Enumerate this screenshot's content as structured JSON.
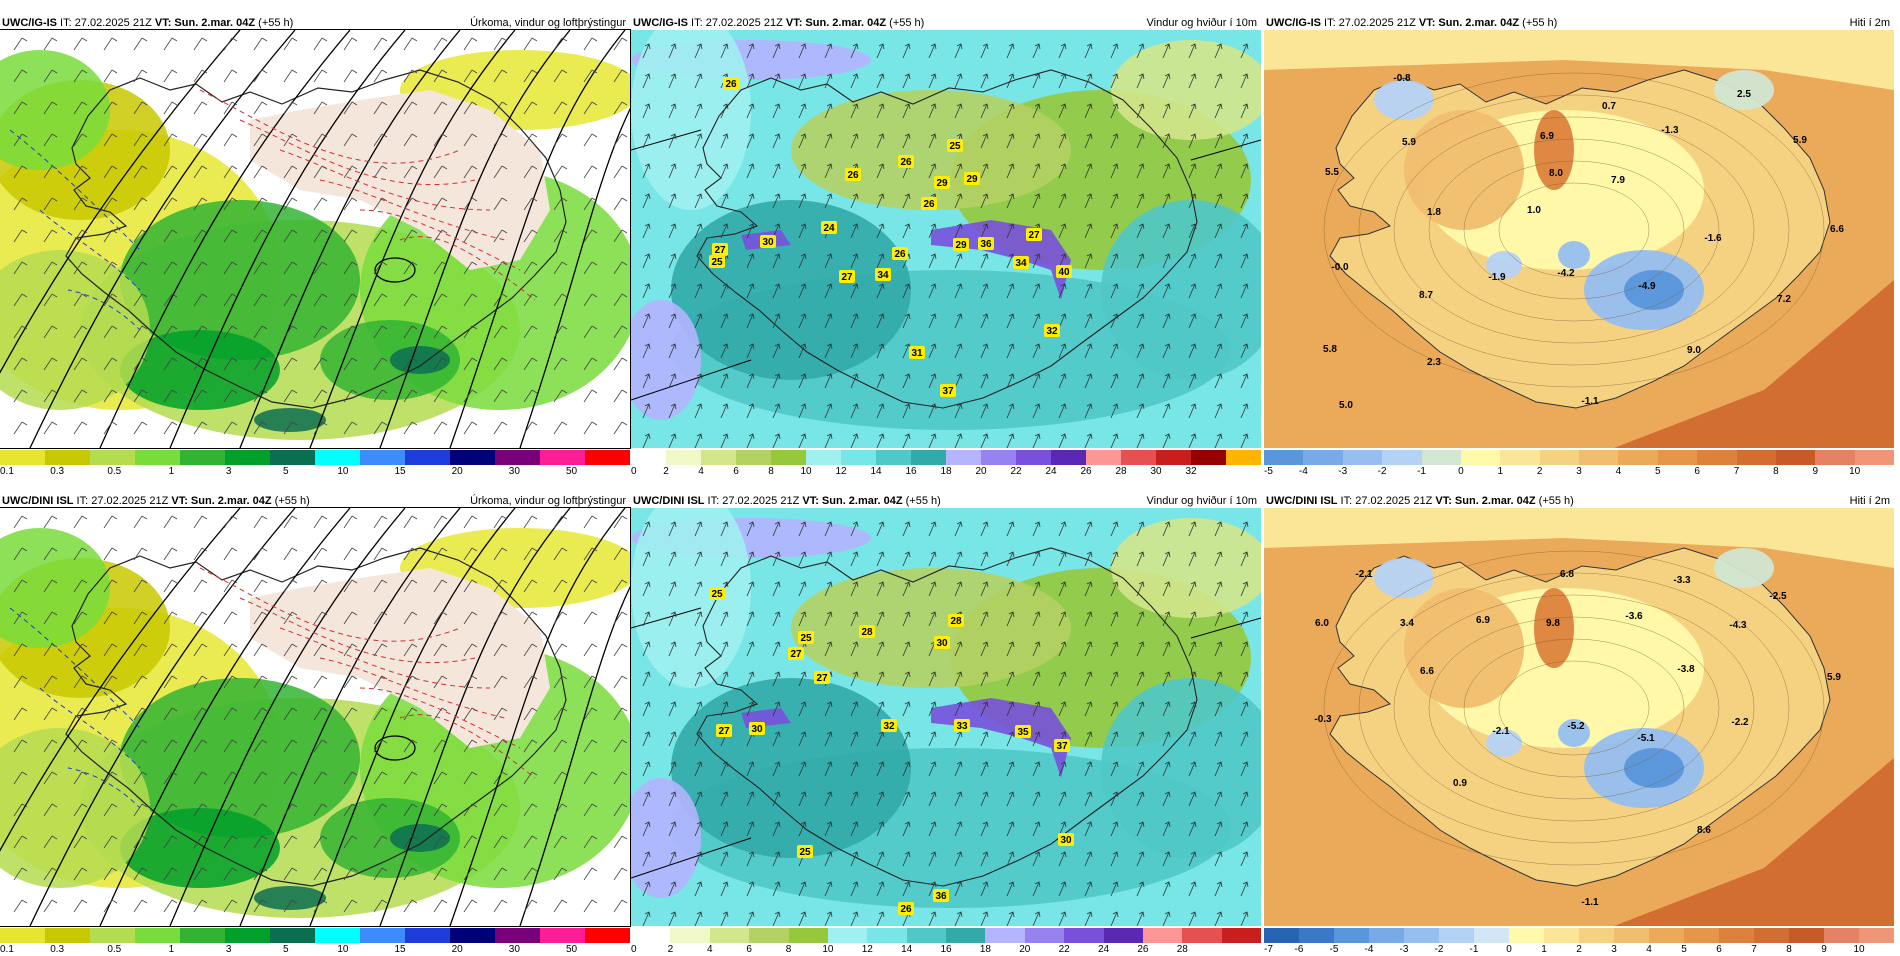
{
  "colorbars": {
    "precip": {
      "colors": [
        "#e6e632",
        "#c8c800",
        "#b4dc50",
        "#78dc3c",
        "#32b432",
        "#00a02a",
        "#0a6e50",
        "#00ffff",
        "#3c8cff",
        "#1e3cdc",
        "#00007a",
        "#780078",
        "#ff1e96",
        "#ff0000"
      ],
      "labels": [
        "0.1",
        "0.3",
        "0.5",
        "1",
        "3",
        "5",
        "10",
        "15",
        "20",
        "30",
        "50"
      ]
    },
    "wind_top": {
      "colors": [
        "#ffffff",
        "#f0f8c8",
        "#d2e68c",
        "#b4d264",
        "#96c83c",
        "#a0f0f0",
        "#78e6e6",
        "#50c8c8",
        "#32aaaa",
        "#b4b4ff",
        "#9682f0",
        "#7850dc",
        "#5a28b4",
        "#ff9696",
        "#e65050",
        "#c81e1e",
        "#960000",
        "#ffb400"
      ],
      "labels": [
        "0",
        "2",
        "4",
        "6",
        "8",
        "10",
        "12",
        "14",
        "16",
        "18",
        "20",
        "22",
        "24",
        "26",
        "28",
        "30",
        "32"
      ]
    },
    "wind_bottom": {
      "colors": [
        "#ffffff",
        "#f0f8c8",
        "#d2e68c",
        "#b4d264",
        "#96c83c",
        "#a0f0f0",
        "#78e6e6",
        "#50c8c8",
        "#32aaaa",
        "#b4b4ff",
        "#9682f0",
        "#7850dc",
        "#5a28b4",
        "#ff9696",
        "#e65050",
        "#c81e1e"
      ],
      "labels": [
        "0",
        "2",
        "4",
        "6",
        "8",
        "10",
        "12",
        "14",
        "16",
        "18",
        "20",
        "22",
        "24",
        "26",
        "28"
      ]
    },
    "temp_top": {
      "colors": [
        "#5a96dc",
        "#78aae6",
        "#96bef0",
        "#b4d2f5",
        "#d2e6d2",
        "#fffaaa",
        "#fae696",
        "#f5d282",
        "#f0be6e",
        "#ebaa5a",
        "#e6964b",
        "#dc823c",
        "#d26e32",
        "#c85a28",
        "#e68264",
        "#f09678"
      ],
      "labels": [
        "-5",
        "-4",
        "-3",
        "-2",
        "-1",
        "0",
        "1",
        "2",
        "3",
        "4",
        "5",
        "6",
        "7",
        "8",
        "9",
        "10"
      ]
    },
    "temp_bottom": {
      "colors": [
        "#2864b4",
        "#3c78c8",
        "#5a96dc",
        "#78aae6",
        "#96bef0",
        "#b4d2f5",
        "#d2e6f5",
        "#fffaaa",
        "#fae696",
        "#f5d282",
        "#f0be6e",
        "#ebaa5a",
        "#e6964b",
        "#dc823c",
        "#d26e32",
        "#c85a28",
        "#e68264",
        "#f09678"
      ],
      "labels": [
        "-7",
        "-6",
        "-5",
        "-4",
        "-3",
        "-2",
        "-1",
        "0",
        "1",
        "2",
        "3",
        "4",
        "5",
        "6",
        "7",
        "8",
        "9",
        "10"
      ]
    }
  },
  "panels": [
    {
      "id": "ig-precip",
      "model": "UWC/IG-IS",
      "it": " IT: 27.02.2025 21Z ",
      "vt_label": "VT:",
      "vt": " Sun. 2.mar. 04Z",
      "lead": " (+55 h)",
      "title": "Úrkoma, vindur og loftþrýstingur",
      "kind": "precip",
      "colorbar": "precip",
      "labels": []
    },
    {
      "id": "ig-wind",
      "model": "UWC/IG-IS",
      "it": " IT: 27.02.2025 21Z ",
      "vt_label": "VT:",
      "vt": " Sun. 2.mar. 04Z",
      "lead": " (+55 h)",
      "title": "Vindur og hviður í 10m",
      "kind": "wind",
      "colorbar": "wind_top",
      "labels": [
        "26",
        "25",
        "26",
        "26",
        "29",
        "29",
        "26",
        "24",
        "27",
        "27",
        "30",
        "26",
        "29",
        "36",
        "34",
        "40",
        "27",
        "34",
        "32",
        "31",
        "37",
        "25"
      ]
    },
    {
      "id": "ig-temp",
      "model": "UWC/IG-IS",
      "it": " IT: 27.02.2025 21Z ",
      "vt_label": "VT:",
      "vt": " Sun. 2.mar. 04Z",
      "lead": " (+55 h)",
      "title": "Hiti í 2m",
      "kind": "temp",
      "colorbar": "temp_top",
      "labels": [
        "-0.8",
        "2.5",
        "0.7",
        "-1.3",
        "5.9",
        "6.9",
        "5.9",
        "5.5",
        "8.0",
        "7.9",
        "1.8",
        "1.0",
        "-1.6",
        "6.6",
        "-0.0",
        "-1.9",
        "-4.2",
        "-4.9",
        "8.7",
        "7.2",
        "5.8",
        "9.0",
        "2.3",
        "5.0",
        "-1.1"
      ]
    },
    {
      "id": "dini-precip",
      "model": "UWC/DINI ISL",
      "it": " IT: 27.02.2025 21Z ",
      "vt_label": "VT:",
      "vt": " Sun. 2.mar. 04Z",
      "lead": " (+55 h)",
      "title": "Úrkoma, vindur og loftþrýstingur",
      "kind": "precip",
      "colorbar": "precip",
      "labels": []
    },
    {
      "id": "dini-wind",
      "model": "UWC/DINI ISL",
      "it": " IT: 27.02.2025 21Z ",
      "vt_label": "VT:",
      "vt": " Sun. 2.mar. 04Z",
      "lead": " (+55 h)",
      "title": "Vindur og hviður í 10m",
      "kind": "wind",
      "colorbar": "wind_bottom",
      "labels": [
        "25",
        "28",
        "30",
        "28",
        "27",
        "27",
        "27",
        "30",
        "32",
        "33",
        "35",
        "37",
        "30",
        "25",
        "26",
        "36",
        "25"
      ]
    },
    {
      "id": "dini-temp",
      "model": "UWC/DINI ISL",
      "it": " IT: 27.02.2025 21Z ",
      "vt_label": "VT:",
      "vt": " Sun. 2.mar. 04Z",
      "lead": " (+55 h)",
      "title": "Hiti í 2m",
      "kind": "temp",
      "colorbar": "temp_bottom",
      "labels": [
        "-2.1",
        "6.8",
        "-3.3",
        "-2.5",
        "6.0",
        "3.4",
        "6.9",
        "9.8",
        "-3.6",
        "-4.3",
        "6.6",
        "-3.8",
        "5.9",
        "-0.3",
        "-2.1",
        "-5.2",
        "-5.1",
        "-2.2",
        "0.9",
        "8.6",
        "-1.1"
      ]
    }
  ]
}
